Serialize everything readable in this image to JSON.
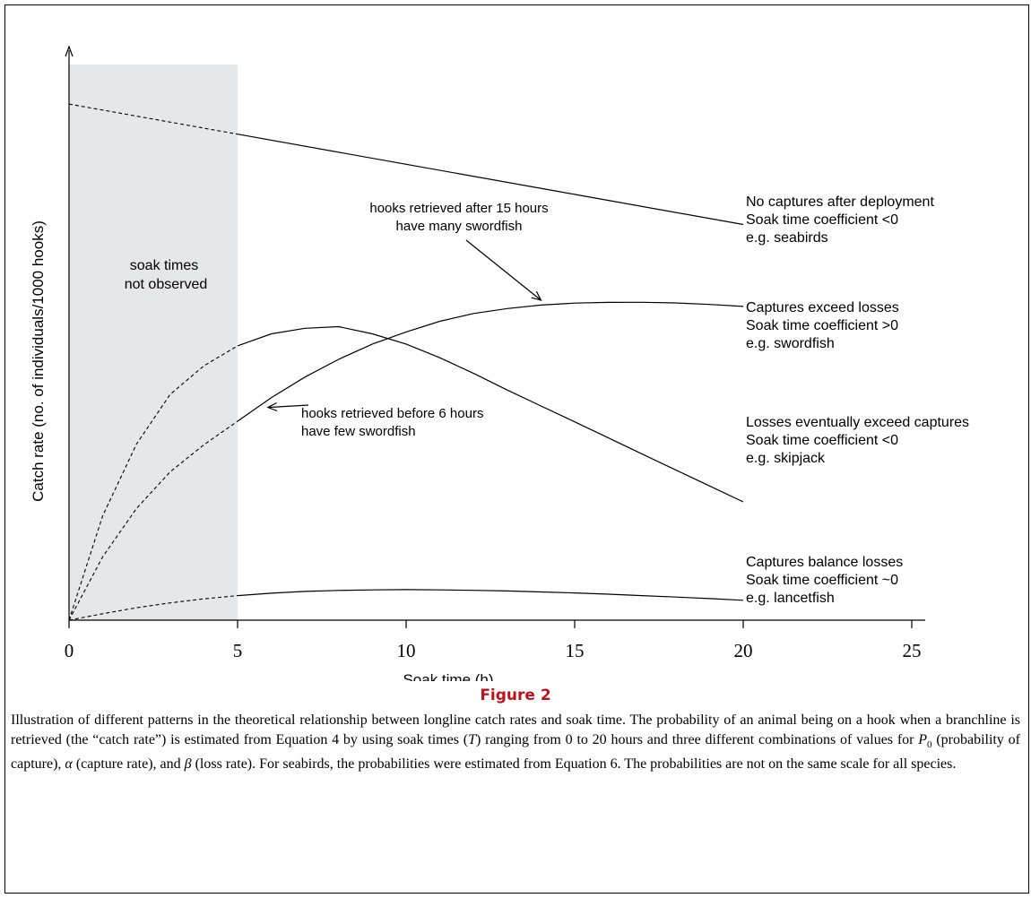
{
  "chart_data": {
    "type": "line",
    "title": "",
    "xlabel": "Soak time (h)",
    "ylabel": "Catch rate (no. of individuals/1000 hooks)",
    "xlim": [
      0,
      25.5
    ],
    "ylim": [
      0,
      1
    ],
    "xticks": [
      0,
      5,
      10,
      15,
      20,
      25
    ],
    "grid": false,
    "shaded_region": {
      "x": [
        0,
        5
      ],
      "label_lines": [
        "soak times",
        "not observed"
      ],
      "color": "#e6e7e8"
    },
    "series": [
      {
        "points": [
          [
            0,
            0.963
          ],
          [
            5,
            0.9069
          ],
          [
            10,
            0.8506
          ],
          [
            15,
            0.7945
          ],
          [
            20,
            0.7383
          ]
        ],
        "label_lines": [
          "No captures after deployment",
          "Soak time coefficient <0",
          "e.g. seabirds"
        ],
        "label_at": [
          20,
          0.7383
        ]
      },
      {
        "points": [
          [
            0,
            0
          ],
          [
            1,
            0.195
          ],
          [
            2,
            0.3284
          ],
          [
            3,
            0.4212
          ],
          [
            4,
            0.4745
          ],
          [
            5,
            0.5118
          ],
          [
            6,
            0.5342
          ],
          [
            7,
            0.5446
          ],
          [
            8,
            0.5476
          ],
          [
            9,
            0.5342
          ],
          [
            10,
            0.5153
          ],
          [
            11,
            0.4897
          ],
          [
            12,
            0.4606
          ],
          [
            13,
            0.4295
          ],
          [
            14,
            0.3997
          ],
          [
            15,
            0.37
          ],
          [
            16,
            0.3401
          ],
          [
            17,
            0.3101
          ],
          [
            18,
            0.2803
          ],
          [
            19,
            0.2505
          ],
          [
            20,
            0.2207
          ]
        ],
        "label_lines": [
          "Losses eventually exceed captures",
          "Soak time coefficient <0",
          "e.g. skipjack"
        ],
        "label_at": [
          20,
          0.2207
        ]
      },
      {
        "points": [
          [
            0,
            0
          ],
          [
            1,
            0.1184
          ],
          [
            2,
            0.2083
          ],
          [
            3,
            0.2767
          ],
          [
            4,
            0.3273
          ],
          [
            5,
            0.3713
          ],
          [
            6,
            0.4152
          ],
          [
            7,
            0.4537
          ],
          [
            8,
            0.4868
          ],
          [
            9,
            0.5153
          ],
          [
            10,
            0.5378
          ],
          [
            11,
            0.5577
          ],
          [
            12,
            0.5722
          ],
          [
            13,
            0.5814
          ],
          [
            14,
            0.588
          ],
          [
            15,
            0.5917
          ],
          [
            16,
            0.5929
          ],
          [
            17,
            0.5932
          ],
          [
            18,
            0.5919
          ],
          [
            19,
            0.5892
          ],
          [
            20,
            0.5855
          ]
        ],
        "label_lines": [
          "Captures exceed losses",
          "Soak time coefficient >0",
          "e.g. swordfish"
        ],
        "label_at": [
          20,
          0.5855
        ]
      },
      {
        "points": [
          [
            0,
            0
          ],
          [
            1,
            0.0121
          ],
          [
            2,
            0.0233
          ],
          [
            3,
            0.0323
          ],
          [
            4,
            0.0398
          ],
          [
            5,
            0.0459
          ],
          [
            6,
            0.0503
          ],
          [
            7,
            0.0537
          ],
          [
            8,
            0.0555
          ],
          [
            9,
            0.0566
          ],
          [
            10,
            0.057
          ],
          [
            11,
            0.0566
          ],
          [
            12,
            0.0557
          ],
          [
            13,
            0.0545
          ],
          [
            14,
            0.0527
          ],
          [
            15,
            0.0508
          ],
          [
            16,
            0.0485
          ],
          [
            17,
            0.0459
          ],
          [
            18,
            0.0431
          ],
          [
            19,
            0.0403
          ],
          [
            20,
            0.0372
          ]
        ],
        "label_lines": [
          "Captures balance losses",
          "Soak time coefficient ~0",
          "e.g. lancetfish"
        ],
        "label_at": [
          20,
          0.0372
        ]
      }
    ],
    "annotations": [
      {
        "lines": [
          "hooks retrieved after 15 hours",
          "have many swordfish"
        ],
        "arrow_to": [
          14,
          0.597
        ]
      },
      {
        "lines": [
          "hooks retrieved before 6 hours",
          "have few swordfish"
        ],
        "arrow_to": [
          5.9,
          0.397
        ]
      }
    ]
  },
  "figure": {
    "title": "Figure 2",
    "caption": "Illustration of different patterns in the theoretical relationship between longline catch rates and soak time. The probability of an animal being on a hook when a branchline is retrieved (the “catch rate”) is estimated from Equation 4 by using soak times (T) ranging from 0 to 20 hours and three different combinations of values for P0 (probability of capture), α (capture rate), and β (loss rate). For seabirds, the probabilities were estimated from Equation 6. The probabilities are not on the same scale for all species."
  }
}
